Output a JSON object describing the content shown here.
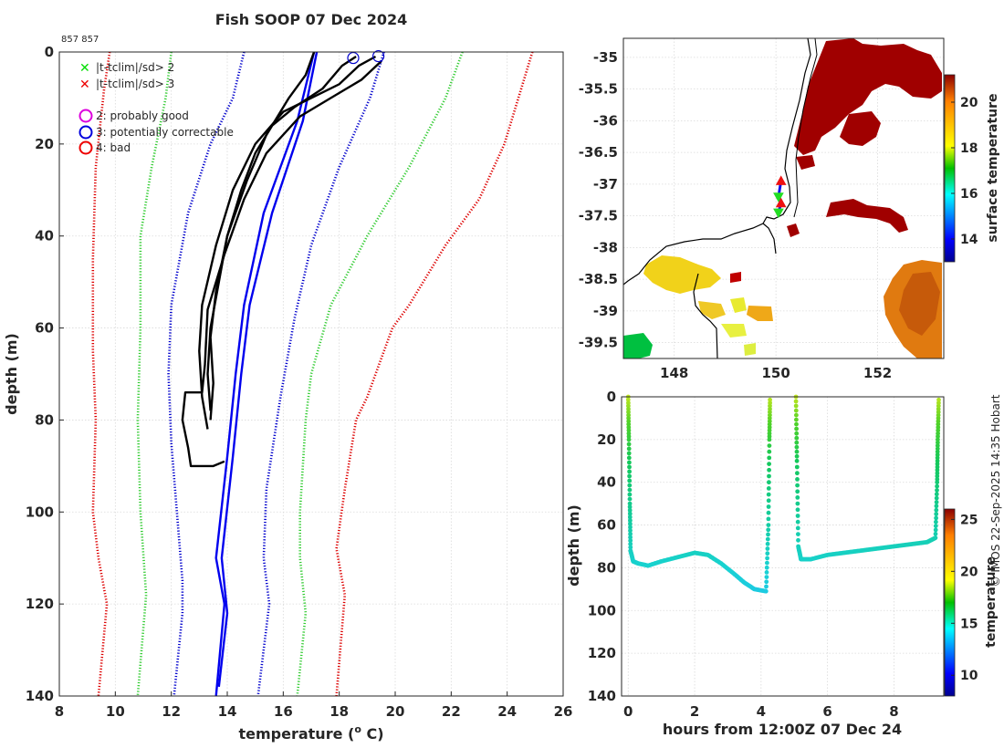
{
  "chart_data": [
    {
      "type": "line",
      "name": "profile",
      "title": "Fish SOOP 07 Dec 2024",
      "id_label": "857 857",
      "xlabel": "temperature (",
      "xlabel_sup": "o",
      "xlabel_end": " C)",
      "ylabel": "depth (m)",
      "xlim": [
        8,
        26
      ],
      "ylim": [
        0,
        140
      ],
      "xticks": [
        8,
        10,
        12,
        14,
        16,
        18,
        20,
        22,
        24,
        26
      ],
      "yticks": [
        0,
        20,
        40,
        60,
        80,
        100,
        120,
        140
      ],
      "legend": [
        {
          "symbol": "x",
          "color": "#00dd00",
          "label": "|t-tclim|/sd> 2"
        },
        {
          "symbol": "x",
          "color": "#ee0000",
          "label": "|t-tclim|/sd> 3"
        },
        {
          "symbol": "o",
          "color": "#dd00dd",
          "label": "2: probably good"
        },
        {
          "symbol": "o",
          "color": "#0000dd",
          "label": "3: potentially correctable"
        },
        {
          "symbol": "o",
          "color": "#ee0000",
          "label": "4: bad"
        }
      ],
      "series": [
        {
          "name": "clim -3sd",
          "color": "#dd0000",
          "style": "dotted",
          "points": [
            [
              9.8,
              0
            ],
            [
              9.6,
              8
            ],
            [
              9.3,
              25
            ],
            [
              9.2,
              45
            ],
            [
              9.2,
              65
            ],
            [
              9.3,
              80
            ],
            [
              9.2,
              100
            ],
            [
              9.4,
              110
            ],
            [
              9.7,
              120
            ],
            [
              9.4,
              140
            ]
          ]
        },
        {
          "name": "clim -2sd",
          "color": "#33cc33",
          "style": "dotted",
          "points": [
            [
              12.0,
              0
            ],
            [
              11.8,
              10
            ],
            [
              11.3,
              25
            ],
            [
              10.9,
              40
            ],
            [
              10.9,
              60
            ],
            [
              10.8,
              80
            ],
            [
              10.9,
              100
            ],
            [
              11.1,
              118
            ],
            [
              10.8,
              140
            ]
          ]
        },
        {
          "name": "clim -1sd",
          "color": "#0000cc",
          "style": "dotted",
          "points": [
            [
              14.6,
              0
            ],
            [
              14.2,
              10
            ],
            [
              13.4,
              20
            ],
            [
              12.6,
              35
            ],
            [
              12.0,
              55
            ],
            [
              11.9,
              70
            ],
            [
              12.0,
              85
            ],
            [
              12.2,
              100
            ],
            [
              12.4,
              115
            ],
            [
              12.4,
              122
            ],
            [
              12.1,
              140
            ]
          ]
        },
        {
          "name": "clim mean",
          "color": "#0000ee",
          "style": "solid",
          "points": [
            [
              17.1,
              0
            ],
            [
              16.5,
              15
            ],
            [
              15.3,
              35
            ],
            [
              14.6,
              55
            ],
            [
              14.3,
              70
            ],
            [
              14.0,
              88
            ],
            [
              13.6,
              110
            ],
            [
              13.9,
              120
            ],
            [
              13.6,
              140
            ]
          ]
        },
        {
          "name": "clim mean b",
          "color": "#0000ee",
          "style": "solid",
          "points": [
            [
              17.2,
              0
            ],
            [
              16.7,
              15
            ],
            [
              15.6,
              35
            ],
            [
              14.8,
              55
            ],
            [
              14.5,
              70
            ],
            [
              14.2,
              88
            ],
            [
              13.8,
              110
            ],
            [
              14.0,
              122
            ],
            [
              13.7,
              138
            ]
          ]
        },
        {
          "name": "clim +1sd",
          "color": "#0000cc",
          "style": "dotted",
          "points": [
            [
              19.6,
              0
            ],
            [
              19.1,
              10
            ],
            [
              18.0,
              25
            ],
            [
              17.0,
              42
            ],
            [
              16.4,
              58
            ],
            [
              15.9,
              75
            ],
            [
              15.4,
              95
            ],
            [
              15.3,
              110
            ],
            [
              15.5,
              120
            ],
            [
              15.1,
              140
            ]
          ]
        },
        {
          "name": "clim +2sd",
          "color": "#33cc33",
          "style": "dotted",
          "points": [
            [
              22.4,
              0
            ],
            [
              21.8,
              10
            ],
            [
              20.5,
              25
            ],
            [
              19.0,
              40
            ],
            [
              17.7,
              55
            ],
            [
              17.0,
              70
            ],
            [
              16.8,
              80
            ],
            [
              16.6,
              100
            ],
            [
              16.6,
              110
            ],
            [
              16.8,
              122
            ],
            [
              16.5,
              140
            ]
          ]
        },
        {
          "name": "clim +3sd",
          "color": "#dd0000",
          "style": "dotted",
          "points": [
            [
              24.9,
              0
            ],
            [
              24.3,
              12
            ],
            [
              23.9,
              20
            ],
            [
              23.0,
              32
            ],
            [
              21.8,
              42
            ],
            [
              20.5,
              55
            ],
            [
              19.9,
              60
            ],
            [
              19.0,
              75
            ],
            [
              18.6,
              80
            ],
            [
              18.2,
              95
            ],
            [
              17.9,
              108
            ],
            [
              18.2,
              118
            ],
            [
              17.9,
              140
            ]
          ]
        },
        {
          "name": "cast 1",
          "color": "#000000",
          "style": "solid",
          "points": [
            [
              17.1,
              0
            ],
            [
              16.8,
              5
            ],
            [
              16.2,
              10
            ],
            [
              15.4,
              18
            ],
            [
              14.7,
              28
            ],
            [
              14.0,
              40
            ],
            [
              13.6,
              52
            ],
            [
              13.4,
              62
            ],
            [
              13.5,
              72
            ],
            [
              13.4,
              80
            ]
          ]
        },
        {
          "name": "cast 2",
          "color": "#000000",
          "style": "solid",
          "points": [
            [
              19.3,
              1
            ],
            [
              18.7,
              3
            ],
            [
              18.0,
              7
            ],
            [
              17.0,
              10
            ],
            [
              16.0,
              13
            ],
            [
              15.0,
              20
            ],
            [
              14.2,
              30
            ],
            [
              13.6,
              42
            ],
            [
              13.1,
              55
            ],
            [
              13.0,
              65
            ],
            [
              13.1,
              75
            ],
            [
              13.3,
              82
            ]
          ]
        },
        {
          "name": "cast 3",
          "color": "#000000",
          "style": "solid",
          "points": [
            [
              19.5,
              2
            ],
            [
              18.8,
              6
            ],
            [
              17.7,
              10
            ],
            [
              16.6,
              14
            ],
            [
              15.4,
              22
            ],
            [
              14.6,
              32
            ],
            [
              13.9,
              44
            ],
            [
              13.3,
              56
            ],
            [
              13.2,
              68
            ],
            [
              13.1,
              74
            ],
            [
              12.5,
              74
            ],
            [
              12.4,
              80
            ],
            [
              12.6,
              86
            ],
            [
              12.7,
              90
            ],
            [
              13.5,
              90
            ],
            [
              13.9,
              89
            ]
          ]
        },
        {
          "name": "cast 4",
          "color": "#000000",
          "style": "solid",
          "points": [
            [
              18.6,
              1
            ],
            [
              18.1,
              3
            ],
            [
              17.4,
              8
            ],
            [
              16.4,
              12
            ],
            [
              15.6,
              16
            ],
            [
              15.0,
              22
            ],
            [
              14.5,
              30
            ],
            [
              14.0,
              40
            ],
            [
              13.7,
              50
            ],
            [
              13.4,
              60
            ],
            [
              13.3,
              70
            ],
            [
              13.4,
              78
            ]
          ]
        }
      ],
      "markers": [
        {
          "shape": "o",
          "color": "#0000cc",
          "x": 18.5,
          "y": 1.3
        },
        {
          "shape": "o",
          "color": "#0000cc",
          "x": 19.4,
          "y": 0.9
        }
      ]
    },
    {
      "type": "heatmap",
      "name": "map",
      "xlim": [
        147,
        153.3
      ],
      "ylim": [
        -39.75,
        -34.7
      ],
      "xticks": [
        148,
        150,
        152
      ],
      "yticks": [
        -35,
        -35.5,
        -36,
        -36.5,
        -37,
        -37.5,
        -38,
        -38.5,
        -39,
        -39.5
      ],
      "colorbar": {
        "label": "surface temperature",
        "ticks": [
          14,
          16,
          18,
          20
        ],
        "range": [
          13,
          21.2
        ]
      },
      "track": [
        [
          150.1,
          -36.95
        ],
        [
          150.05,
          -37.2
        ],
        [
          150.1,
          -37.3
        ],
        [
          150.05,
          -37.45
        ]
      ]
    },
    {
      "type": "scatter",
      "name": "timeseries",
      "xlabel": "hours from 12:00Z 07 Dec 24",
      "ylabel": "depth (m)",
      "xlim": [
        -0.2,
        9.5
      ],
      "ylim": [
        0,
        140
      ],
      "xticks": [
        0,
        2,
        4,
        6,
        8
      ],
      "yticks": [
        0,
        20,
        40,
        60,
        80,
        100,
        120,
        140
      ],
      "colorbar": {
        "label": "temperature",
        "ticks": [
          10,
          15,
          20,
          25
        ],
        "range": [
          8,
          26
        ]
      },
      "casts": [
        [
          [
            0.0,
            0
          ],
          [
            0.02,
            20
          ],
          [
            0.05,
            50
          ],
          [
            0.07,
            72
          ],
          [
            0.15,
            77
          ],
          [
            0.3,
            78
          ],
          [
            0.6,
            79
          ],
          [
            1.0,
            77
          ],
          [
            1.5,
            75
          ],
          [
            2.0,
            73
          ],
          [
            2.4,
            74
          ],
          [
            2.8,
            78
          ],
          [
            3.2,
            83
          ],
          [
            3.5,
            87
          ],
          [
            3.8,
            90
          ],
          [
            4.15,
            91
          ],
          [
            4.22,
            60
          ],
          [
            4.25,
            20
          ],
          [
            4.27,
            0
          ]
        ],
        [
          [
            5.05,
            0
          ],
          [
            5.08,
            30
          ],
          [
            5.12,
            70
          ],
          [
            5.2,
            76
          ],
          [
            5.5,
            76
          ],
          [
            6.0,
            74
          ],
          [
            6.5,
            73
          ],
          [
            7.0,
            72
          ],
          [
            7.5,
            71
          ],
          [
            8.0,
            70
          ],
          [
            8.5,
            69
          ],
          [
            9.0,
            68
          ],
          [
            9.25,
            66
          ],
          [
            9.3,
            40
          ],
          [
            9.32,
            20
          ],
          [
            9.35,
            0
          ]
        ]
      ]
    }
  ],
  "page": {
    "credit": "© IMOS 22-Sep-2025 14:35 Hobart"
  }
}
